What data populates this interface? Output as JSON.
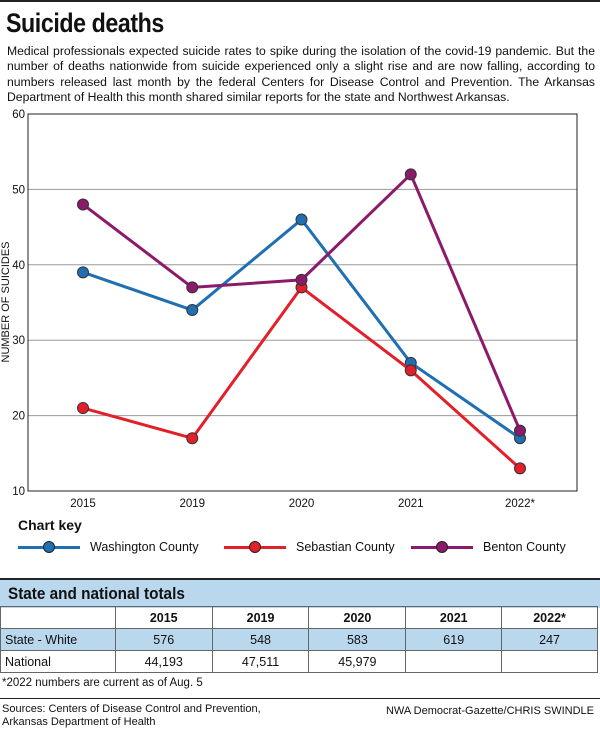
{
  "title": "Suicide deaths",
  "intro": "Medical professionals expected suicide rates to spike during the isolation of the covid-19 pandemic. But the number of deaths nationwide from suicide experienced only a slight rise and are now falling, according to numbers released last month by the federal Centers for Disease Control and Prevention. The Arkansas Department of Health this month shared similar reports for the state and Northwest Arkansas.",
  "chart_data": {
    "type": "line",
    "categories": [
      "2015",
      "2019",
      "2020",
      "2021",
      "2022*"
    ],
    "ylabel": "NUMBER OF SUICIDES",
    "xlabel": "",
    "ylim": [
      10,
      60
    ],
    "yticks": [
      10,
      20,
      30,
      40,
      50,
      60
    ],
    "grid": true,
    "series": [
      {
        "name": "Washington County",
        "color": "#1f6fb2",
        "values": [
          39,
          34,
          46,
          27,
          17
        ]
      },
      {
        "name": "Sebastian County",
        "color": "#e3202a",
        "values": [
          21,
          17,
          37,
          26,
          13
        ]
      },
      {
        "name": "Benton County",
        "color": "#8c1a6b",
        "values": [
          48,
          37,
          38,
          52,
          18
        ]
      }
    ]
  },
  "key": {
    "title": "Chart key",
    "items": [
      {
        "label": "Washington County",
        "color": "#1f6fb2"
      },
      {
        "label": "Sebastian County",
        "color": "#e3202a"
      },
      {
        "label": "Benton County",
        "color": "#8c1a6b"
      }
    ]
  },
  "table": {
    "title": "State and national totals",
    "headers": [
      "",
      "2015",
      "2019",
      "2020",
      "2021",
      "2022*"
    ],
    "rows": [
      {
        "cells": [
          "State - White",
          "576",
          "548",
          "583",
          "619",
          "247"
        ]
      },
      {
        "cells": [
          "National",
          "44,193",
          "47,511",
          "45,979",
          "",
          ""
        ]
      }
    ]
  },
  "note": "*2022 numbers are current as of Aug. 5",
  "sources": "Sources: Centers of Disease Control and Prevention, Arkansas Department of Health",
  "credit": "NWA Democrat-Gazette/CHRIS SWINDLE"
}
